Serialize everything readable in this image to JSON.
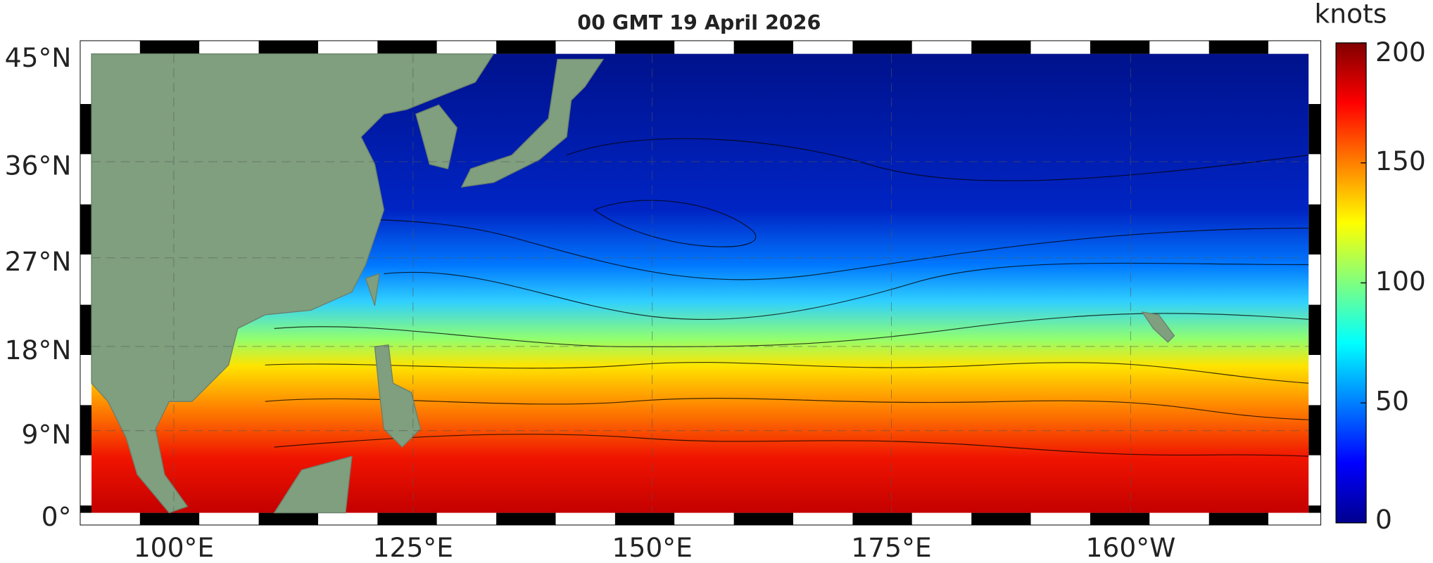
{
  "title": "00 GMT 19 April 2026",
  "map": {
    "lon_lim": [
      91.4,
      218.6
    ],
    "lat_lim": [
      0,
      45
    ],
    "lat_ticks": [
      {
        "value": 45,
        "label": "45°N"
      },
      {
        "value": 36,
        "label": "36°N"
      },
      {
        "value": 27,
        "label": "27°N"
      },
      {
        "value": 18,
        "label": "18°N"
      },
      {
        "value": 9,
        "label": "9°N"
      },
      {
        "value": 0,
        "label": "0°"
      }
    ],
    "lon_ticks": [
      {
        "value": 100,
        "label": "100°E"
      },
      {
        "value": 125,
        "label": "125°E"
      },
      {
        "value": 150,
        "label": "150°E"
      },
      {
        "value": 175,
        "label": "175°E"
      },
      {
        "value": 200,
        "label": "160°W"
      }
    ]
  },
  "colorbar": {
    "label": "knots",
    "lim": [
      0,
      200
    ],
    "ticks": [
      0,
      50,
      100,
      150,
      200
    ]
  }
}
